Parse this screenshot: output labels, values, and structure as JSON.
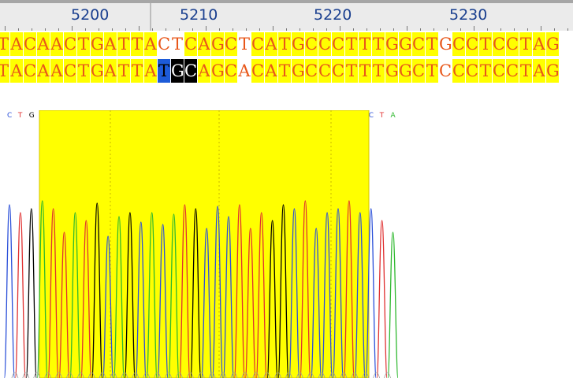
{
  "ruler": {
    "positions": [
      "5200",
      "5210",
      "5220",
      "5230"
    ]
  },
  "alignment": {
    "reference": "TACAACTGATTACTCAGCTCATGCCCTTTGGCTGCCTCCTAG",
    "sample": "TACAACTGATTATGCAGCACATGCCCTTTGGCTCCCTCCTAG",
    "colors": {
      "highlight_bg": "#ffff00",
      "text": "#e8571a",
      "mismatch_bg": "#ffffff",
      "selected_bg": "#000000",
      "selected_text": "#ffffff",
      "cursor_bg": "#1d5bd8"
    }
  },
  "chromatogram": {
    "base_calls": "CTGATTATGCAGCACATGCCCTTTGGCTCCCTCCTA",
    "highlight_color": "#ffff00",
    "trace_colors": {
      "A": "#2eb82e",
      "C": "#2a4fd9",
      "G": "#000000",
      "T": "#e03030"
    }
  }
}
